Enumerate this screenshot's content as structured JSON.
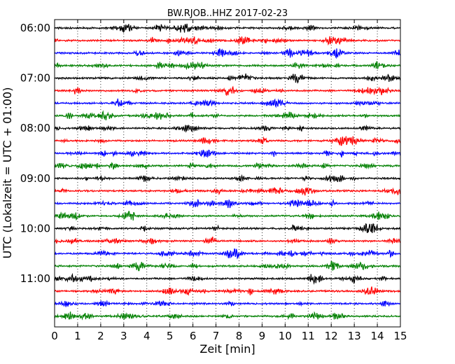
{
  "chart_data": {
    "type": "line",
    "title": "BW.RJOB..HHZ 2017-02-23",
    "xlabel": "Zeit  [min]",
    "ylabel": "UTC (Lokalzeit = UTC + 01:00)",
    "xlim": [
      0,
      15
    ],
    "x_ticks": [
      "0",
      "1",
      "2",
      "3",
      "4",
      "5",
      "6",
      "7",
      "8",
      "9",
      "10",
      "11",
      "12",
      "13",
      "14",
      "15"
    ],
    "y_tick_labels": [
      "06:00",
      "07:00",
      "08:00",
      "09:00",
      "10:00",
      "11:00"
    ],
    "trace_start_times": [
      "06:00",
      "06:15",
      "06:30",
      "06:45",
      "07:00",
      "07:15",
      "07:30",
      "07:45",
      "08:00",
      "08:15",
      "08:30",
      "08:45",
      "09:00",
      "09:15",
      "09:30",
      "09:45",
      "10:00",
      "10:15",
      "10:30",
      "10:45",
      "11:00",
      "11:15",
      "11:30",
      "11:45"
    ],
    "trace_color_cycle": [
      "#000000",
      "#ff0000",
      "#0000ff",
      "#008000"
    ],
    "grid": "vertical dotted at each minute",
    "legend": "none"
  }
}
